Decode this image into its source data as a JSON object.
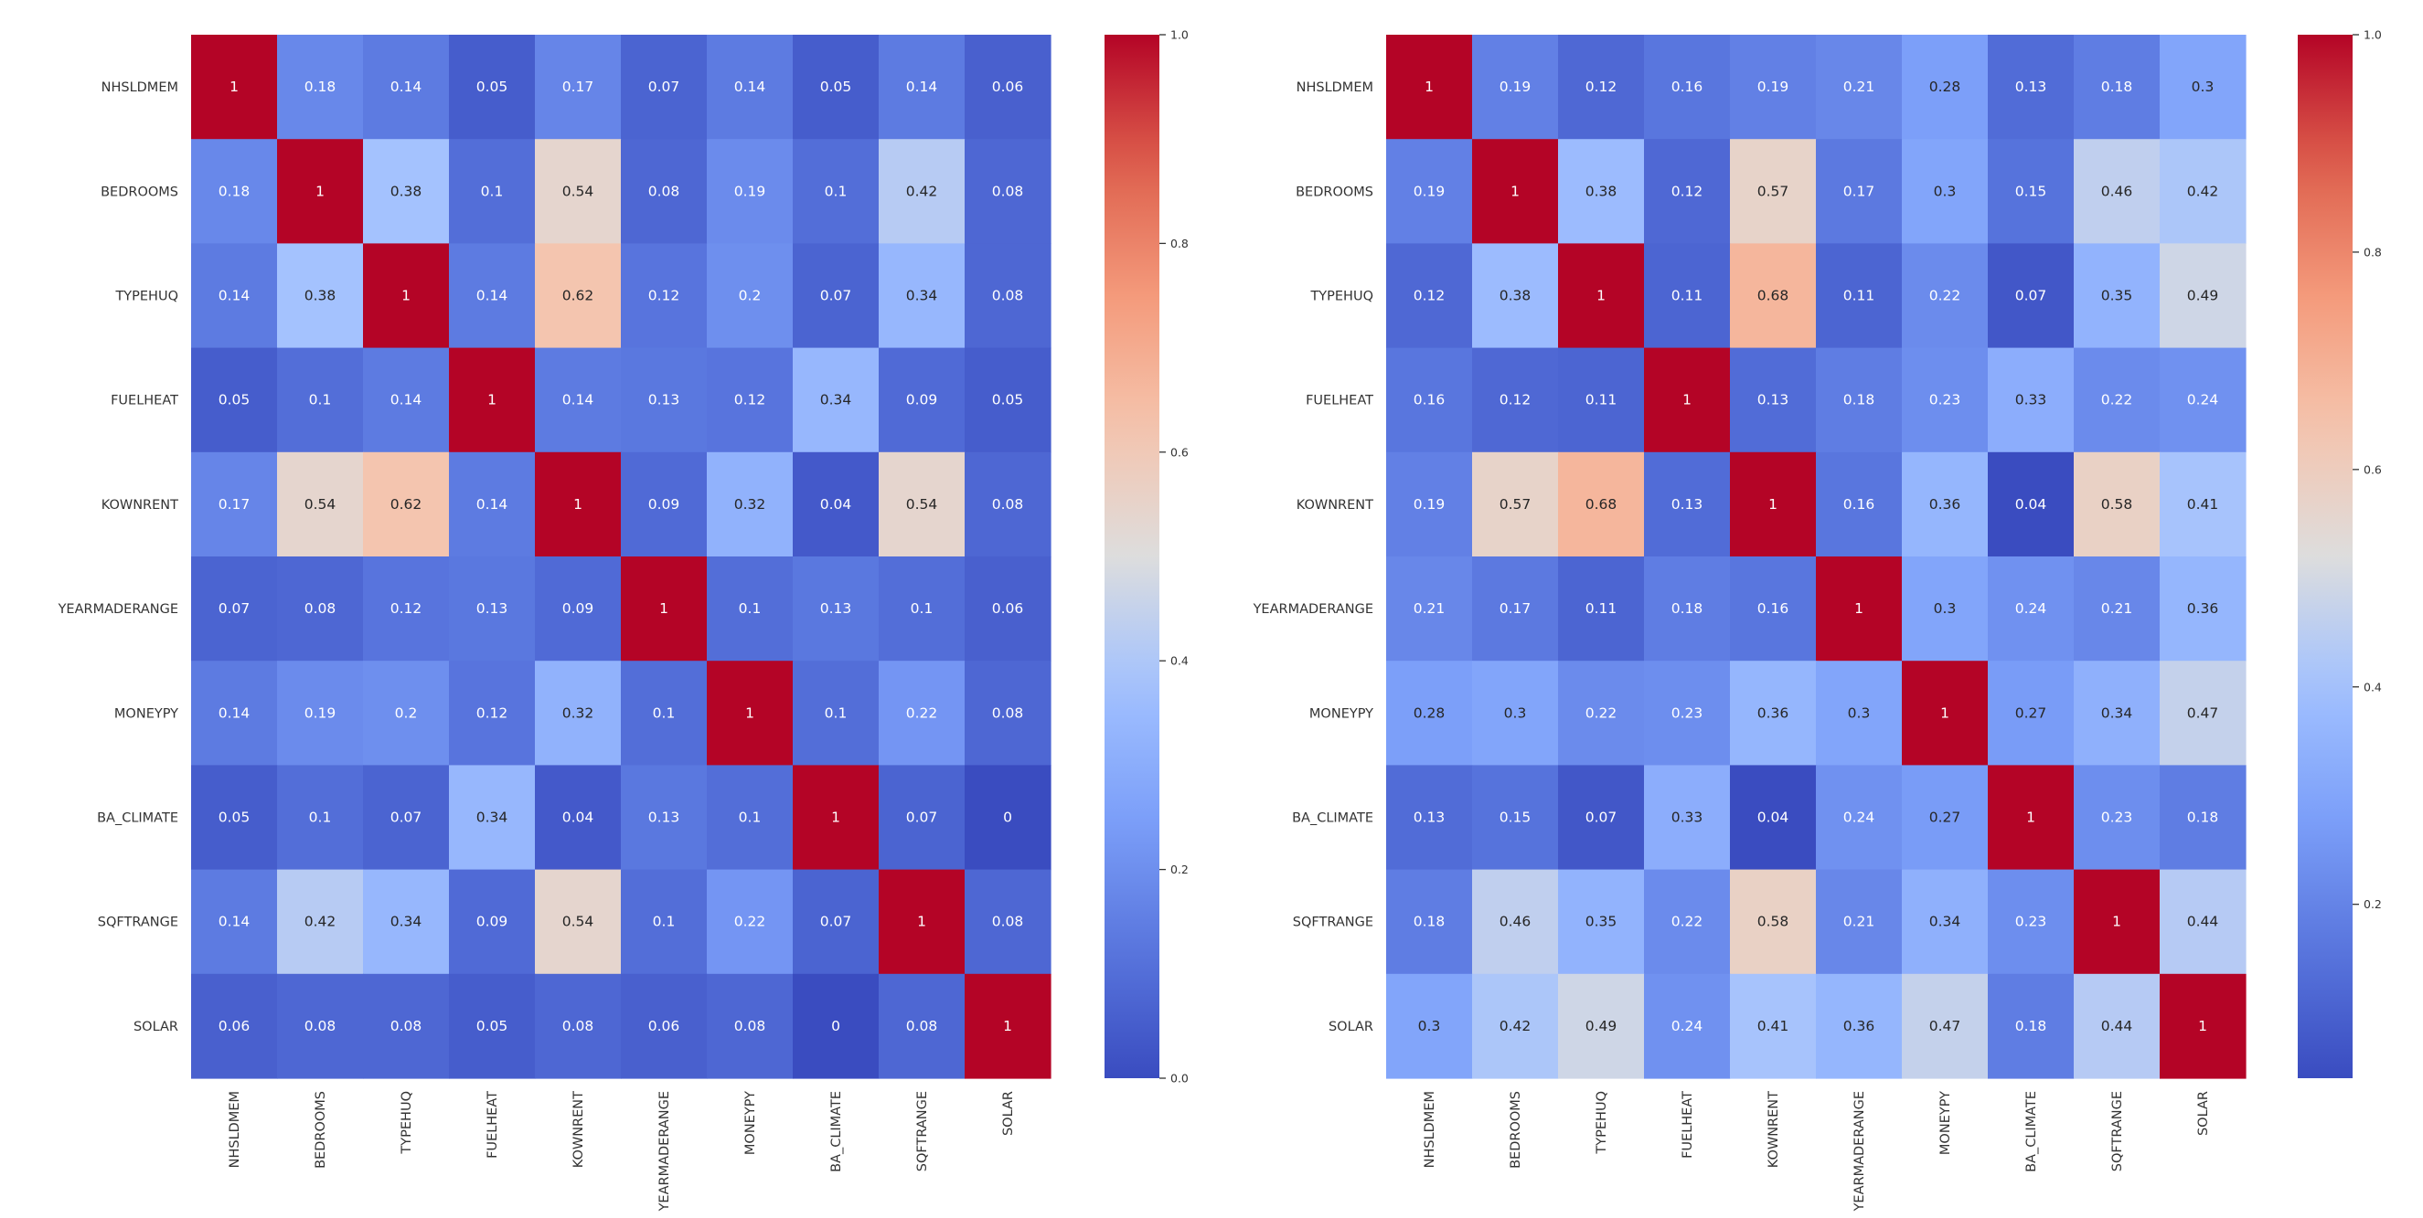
{
  "chart_data": [
    {
      "type": "heatmap",
      "title": "",
      "xlabel": "",
      "ylabel": "",
      "variables": [
        "NHSLDMEM",
        "BEDROOMS",
        "TYPEHUQ",
        "FUELHEAT",
        "KOWNRENT",
        "YEARMADERANGE",
        "MONEYPY",
        "BA_CLIMATE",
        "SQFTRANGE",
        "SOLAR"
      ],
      "values": [
        [
          1,
          0.18,
          0.14,
          0.05,
          0.17,
          0.07,
          0.14,
          0.05,
          0.14,
          0.06
        ],
        [
          0.18,
          1,
          0.38,
          0.1,
          0.54,
          0.08,
          0.19,
          0.1,
          0.42,
          0.08
        ],
        [
          0.14,
          0.38,
          1,
          0.14,
          0.62,
          0.12,
          0.2,
          0.07,
          0.34,
          0.08
        ],
        [
          0.05,
          0.1,
          0.14,
          1,
          0.14,
          0.13,
          0.12,
          0.34,
          0.09,
          0.05
        ],
        [
          0.17,
          0.54,
          0.62,
          0.14,
          1,
          0.09,
          0.32,
          0.04,
          0.54,
          0.08
        ],
        [
          0.07,
          0.08,
          0.12,
          0.13,
          0.09,
          1,
          0.1,
          0.13,
          0.1,
          0.06
        ],
        [
          0.14,
          0.19,
          0.2,
          0.12,
          0.32,
          0.1,
          1,
          0.1,
          0.22,
          0.08
        ],
        [
          0.05,
          0.1,
          0.07,
          0.34,
          0.04,
          0.13,
          0.1,
          1,
          0.07,
          0
        ],
        [
          0.14,
          0.42,
          0.34,
          0.09,
          0.54,
          0.1,
          0.22,
          0.07,
          1,
          0.08
        ],
        [
          0.06,
          0.08,
          0.08,
          0.05,
          0.08,
          0.06,
          0.08,
          0,
          0.08,
          1
        ]
      ],
      "colormap": "coolwarm",
      "vmin": 0,
      "vmax": 1,
      "colorbar_ticks": [
        "0.0",
        "0.2",
        "0.4",
        "0.6",
        "0.8",
        "1.0"
      ],
      "colorbar_tick_values": [
        0,
        0.2,
        0.4,
        0.6,
        0.8,
        1.0
      ]
    },
    {
      "type": "heatmap",
      "title": "",
      "xlabel": "",
      "ylabel": "",
      "variables": [
        "NHSLDMEM",
        "BEDROOMS",
        "TYPEHUQ",
        "FUELHEAT",
        "KOWNRENT",
        "YEARMADERANGE",
        "MONEYPY",
        "BA_CLIMATE",
        "SQFTRANGE",
        "SOLAR"
      ],
      "values": [
        [
          1,
          0.19,
          0.12,
          0.16,
          0.19,
          0.21,
          0.28,
          0.13,
          0.18,
          0.3
        ],
        [
          0.19,
          1,
          0.38,
          0.12,
          0.57,
          0.17,
          0.3,
          0.15,
          0.46,
          0.42
        ],
        [
          0.12,
          0.38,
          1,
          0.11,
          0.68,
          0.11,
          0.22,
          0.07,
          0.35,
          0.49
        ],
        [
          0.16,
          0.12,
          0.11,
          1,
          0.13,
          0.18,
          0.23,
          0.33,
          0.22,
          0.24
        ],
        [
          0.19,
          0.57,
          0.68,
          0.13,
          1,
          0.16,
          0.36,
          0.04,
          0.58,
          0.41
        ],
        [
          0.21,
          0.17,
          0.11,
          0.18,
          0.16,
          1,
          0.3,
          0.24,
          0.21,
          0.36
        ],
        [
          0.28,
          0.3,
          0.22,
          0.23,
          0.36,
          0.3,
          1,
          0.27,
          0.34,
          0.47
        ],
        [
          0.13,
          0.15,
          0.07,
          0.33,
          0.04,
          0.24,
          0.27,
          1,
          0.23,
          0.18
        ],
        [
          0.18,
          0.46,
          0.35,
          0.22,
          0.58,
          0.21,
          0.34,
          0.23,
          1,
          0.44
        ],
        [
          0.3,
          0.42,
          0.49,
          0.24,
          0.41,
          0.36,
          0.47,
          0.18,
          0.44,
          1
        ]
      ],
      "colormap": "coolwarm",
      "vmin": 0.04,
      "vmax": 1,
      "colorbar_ticks": [
        "0.2",
        "0.4",
        "0.6",
        "0.8",
        "1.0"
      ],
      "colorbar_tick_values": [
        0.2,
        0.4,
        0.6,
        0.8,
        1.0
      ]
    }
  ]
}
